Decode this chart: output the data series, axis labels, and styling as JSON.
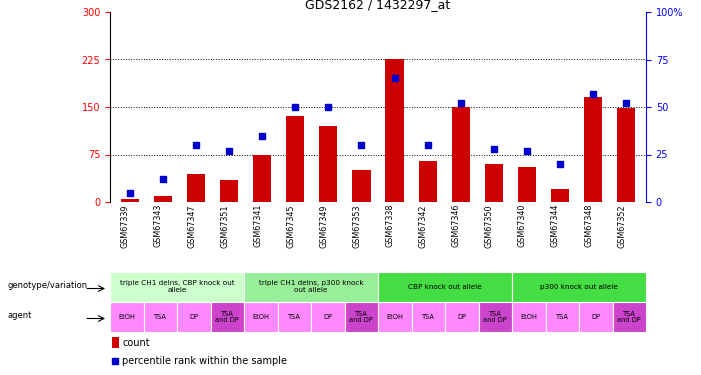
{
  "title": "GDS2162 / 1432297_at",
  "samples": [
    "GSM67339",
    "GSM67343",
    "GSM67347",
    "GSM67351",
    "GSM67341",
    "GSM67345",
    "GSM67349",
    "GSM67353",
    "GSM67338",
    "GSM67342",
    "GSM67346",
    "GSM67350",
    "GSM67340",
    "GSM67344",
    "GSM67348",
    "GSM67352"
  ],
  "counts": [
    5,
    10,
    45,
    35,
    75,
    135,
    120,
    50,
    225,
    65,
    150,
    60,
    55,
    20,
    165,
    148
  ],
  "percentiles": [
    5,
    12,
    30,
    27,
    35,
    50,
    50,
    30,
    65,
    30,
    52,
    28,
    27,
    20,
    57,
    52
  ],
  "ylim_left": [
    0,
    300
  ],
  "ylim_right": [
    0,
    100
  ],
  "yticks_left": [
    0,
    75,
    150,
    225,
    300
  ],
  "yticks_right": [
    0,
    25,
    50,
    75,
    100
  ],
  "bar_color": "#cc0000",
  "dot_color": "#0000cc",
  "genotype_groups": [
    {
      "label": "triple CH1 delns, CBP knock out\nallele",
      "start": 0,
      "end": 4,
      "color": "#ccffcc"
    },
    {
      "label": "triple CH1 delns, p300 knock\nout allele",
      "start": 4,
      "end": 8,
      "color": "#99ee99"
    },
    {
      "label": "CBP knock out allele",
      "start": 8,
      "end": 12,
      "color": "#44dd44"
    },
    {
      "label": "p300 knock out allele",
      "start": 12,
      "end": 16,
      "color": "#44dd44"
    }
  ],
  "agent_labels": [
    "EtOH",
    "TSA",
    "DP",
    "TSA\nand DP",
    "EtOH",
    "TSA",
    "DP",
    "TSA\nand DP",
    "EtOH",
    "TSA",
    "DP",
    "TSA\nand DP",
    "EtOH",
    "TSA",
    "DP",
    "TSA\nand DP"
  ],
  "agent_colors": [
    "#ff88ff",
    "#ff88ff",
    "#ff88ff",
    "#cc44cc",
    "#ff88ff",
    "#ff88ff",
    "#ff88ff",
    "#cc44cc",
    "#ff88ff",
    "#ff88ff",
    "#ff88ff",
    "#cc44cc",
    "#ff88ff",
    "#ff88ff",
    "#ff88ff",
    "#cc44cc"
  ],
  "label_bg": "#bbbbbb",
  "bg_color": "#ffffff"
}
